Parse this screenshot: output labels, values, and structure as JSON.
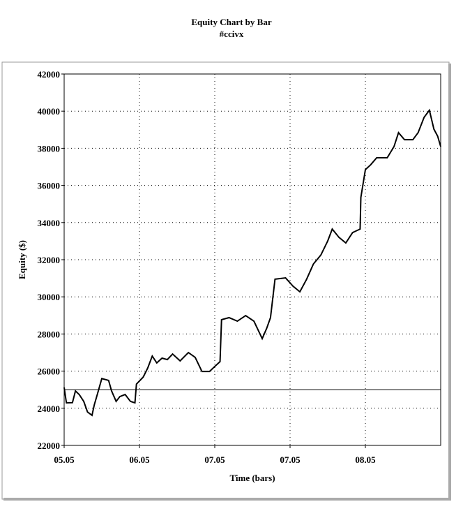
{
  "chart_data": {
    "type": "line",
    "title": "Equity Chart by Bar",
    "subtitle": "#ccivx",
    "x_label": "Time (bars)",
    "y_label": "Equity ($)",
    "x": [
      0,
      3,
      11,
      15,
      20,
      26,
      31,
      37,
      40,
      44,
      50,
      59,
      63,
      69,
      74,
      81,
      88,
      94,
      96,
      105,
      111,
      117,
      123,
      130,
      137,
      144,
      154,
      165,
      174,
      183,
      193,
      200,
      207,
      209,
      219,
      230,
      241,
      252,
      263,
      269,
      274,
      280,
      294,
      304,
      313,
      322,
      331,
      341,
      350,
      356,
      365,
      374,
      383,
      393,
      394,
      400,
      407,
      415,
      429,
      438,
      444,
      452,
      463,
      470,
      478,
      485,
      491,
      496,
      500
    ],
    "series": [
      {
        "name": "Equity",
        "color": "#000000",
        "values": [
          25120,
          24290,
          24300,
          24930,
          24740,
          24370,
          23800,
          23620,
          24180,
          24740,
          25600,
          25500,
          24930,
          24370,
          24630,
          24740,
          24370,
          24290,
          25300,
          25680,
          26170,
          26810,
          26440,
          26700,
          26620,
          26920,
          26550,
          27000,
          26740,
          25980,
          25980,
          26250,
          26510,
          28770,
          28880,
          28690,
          28990,
          28690,
          27750,
          28310,
          28880,
          30950,
          31020,
          30570,
          30270,
          30950,
          31770,
          32260,
          33010,
          33650,
          33200,
          32900,
          33460,
          33650,
          35350,
          36850,
          37110,
          37490,
          37490,
          38090,
          38840,
          38460,
          38460,
          38840,
          39670,
          40050,
          39030,
          38650,
          38090
        ]
      }
    ],
    "reference_line": 25000,
    "xlim": [
      0,
      500
    ],
    "xticks": [
      {
        "value": 0,
        "label": "05.05"
      },
      {
        "value": 100,
        "label": "06.05"
      },
      {
        "value": 200,
        "label": "07.05"
      },
      {
        "value": 300,
        "label": "07.05"
      },
      {
        "value": 400,
        "label": "08.05"
      }
    ],
    "ylim": [
      22000,
      42000
    ],
    "yticks": [
      22000,
      24000,
      26000,
      28000,
      30000,
      32000,
      34000,
      36000,
      38000,
      40000,
      42000
    ],
    "grid": true
  }
}
